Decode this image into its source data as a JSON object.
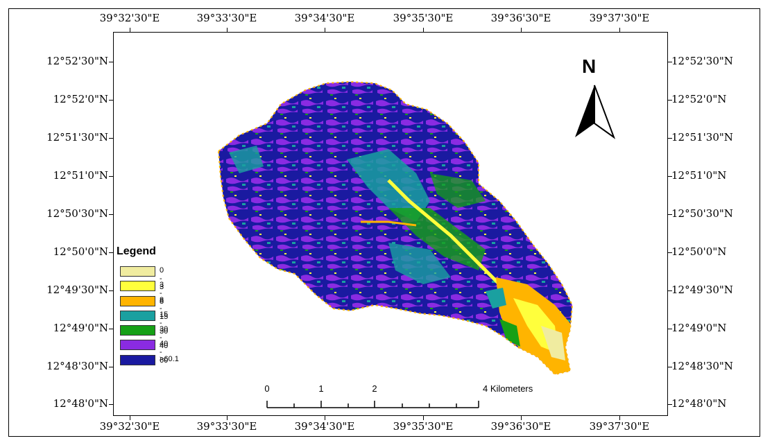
{
  "map": {
    "lon_labels": [
      "39°32'30\"E",
      "39°33'30\"E",
      "39°34'30\"E",
      "39°35'30\"E",
      "39°36'30\"E",
      "39°37'30\"E"
    ],
    "lat_labels": [
      "12°52'30\"N",
      "12°52'0\"N",
      "12°51'30\"N",
      "12°51'0\"N",
      "12°50'30\"N",
      "12°50'0\"N",
      "12°49'30\"N",
      "12°49'0\"N",
      "12°48'30\"N",
      "12°48'0\"N"
    ],
    "north_label": "N"
  },
  "legend": {
    "title": "Legend",
    "items": [
      {
        "label": "0 - 3",
        "color": "#f0eca0"
      },
      {
        "label": "3 - 8",
        "color": "#ffff3c"
      },
      {
        "label": "8 - 15",
        "color": "#ffb400"
      },
      {
        "label": "15 - 30",
        "color": "#1aa0a0"
      },
      {
        "label": "30 - 40",
        "color": "#16a016"
      },
      {
        "label": "40 - 60",
        "color": "#8a2be2"
      },
      {
        "label": ">60.1",
        "color": "#1a1aa0"
      }
    ]
  },
  "scalebar": {
    "labels": [
      "0",
      "1",
      "2",
      "4 Kilometers"
    ]
  }
}
